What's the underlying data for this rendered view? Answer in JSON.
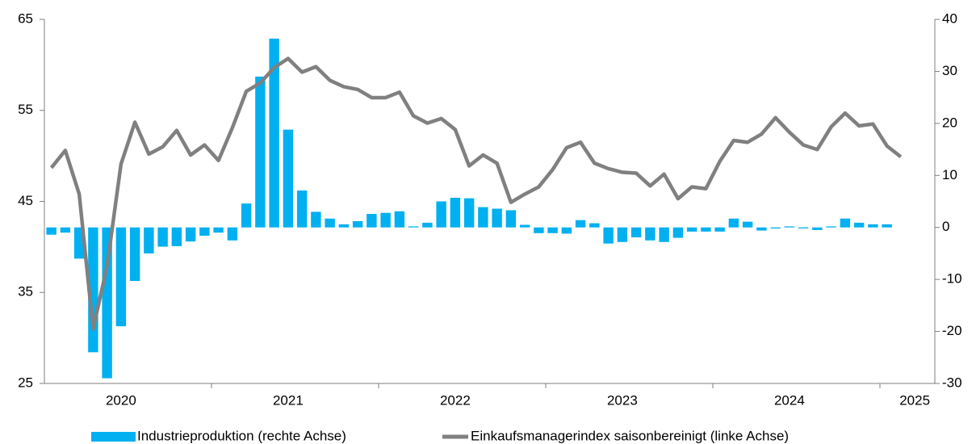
{
  "chart_data": {
    "type": "bar_line",
    "categories": [
      null,
      null,
      null,
      null,
      null,
      "2020",
      null,
      null,
      null,
      null,
      null,
      null,
      null,
      null,
      null,
      null,
      null,
      "2021",
      null,
      null,
      null,
      null,
      null,
      null,
      null,
      null,
      null,
      null,
      null,
      "2022",
      null,
      null,
      null,
      null,
      null,
      null,
      null,
      null,
      null,
      null,
      null,
      "2023",
      null,
      null,
      null,
      null,
      null,
      null,
      null,
      null,
      null,
      null,
      null,
      "2024",
      null,
      null,
      null,
      null,
      null,
      null,
      null,
      null,
      "2025"
    ],
    "series": [
      {
        "name": "Industrieproduktion (rechte Achse)",
        "type": "bar",
        "axis": "y2",
        "color": "#00b0f0",
        "values": [
          -1.4,
          -1,
          -6,
          -24,
          -29,
          -19,
          -10.3,
          -5,
          -3.7,
          -3.6,
          -2.7,
          -1.6,
          -1,
          -2.5,
          4.6,
          29,
          36.3,
          18.8,
          7.1,
          3,
          1.7,
          0.6,
          1.2,
          2.6,
          2.8,
          3.1,
          0.2,
          0.9,
          5,
          5.7,
          5.6,
          3.9,
          3.6,
          3.3,
          0.5,
          -1.1,
          -1.1,
          -1.2,
          1.4,
          0.8,
          -3.1,
          -2.8,
          -1.9,
          -2.5,
          -2.8,
          -2,
          -0.8,
          -0.8,
          -0.8,
          1.7,
          1.1,
          -0.6,
          -0.2,
          0.2,
          -0.2,
          -0.5,
          0.2,
          1.7,
          0.9,
          0.6,
          0.6,
          null,
          null
        ]
      },
      {
        "name": "Einkaufsmanagerindex saisonbereinigt (linke Achse)",
        "type": "line",
        "axis": "y",
        "color": "#808080",
        "values": [
          48.7,
          50.6,
          45.8,
          31,
          37.9,
          49.1,
          53.7,
          50.2,
          51,
          52.8,
          50.1,
          51.2,
          49.5,
          53.1,
          57.1,
          58,
          59.7,
          60.7,
          59.2,
          59.8,
          58.3,
          57.6,
          57.3,
          56.4,
          56.4,
          57,
          54.4,
          53.6,
          54.1,
          52.9,
          48.9,
          50.1,
          49.2,
          44.9,
          45.8,
          46.6,
          48.5,
          50.9,
          51.5,
          49.2,
          48.6,
          48.2,
          48.1,
          46.7,
          48,
          45.3,
          46.6,
          46.4,
          49.4,
          51.7,
          51.5,
          52.4,
          54.2,
          52.6,
          51.2,
          50.7,
          53.2,
          54.7,
          53.3,
          53.5,
          51.1,
          49.9,
          null
        ]
      }
    ],
    "ylim": [
      25,
      65
    ],
    "yticks": [
      25,
      35,
      45,
      55,
      65
    ],
    "y2lim": [
      -30,
      40
    ],
    "y2ticks": [
      -30,
      -20,
      -10,
      0,
      10,
      20,
      30,
      40
    ]
  }
}
